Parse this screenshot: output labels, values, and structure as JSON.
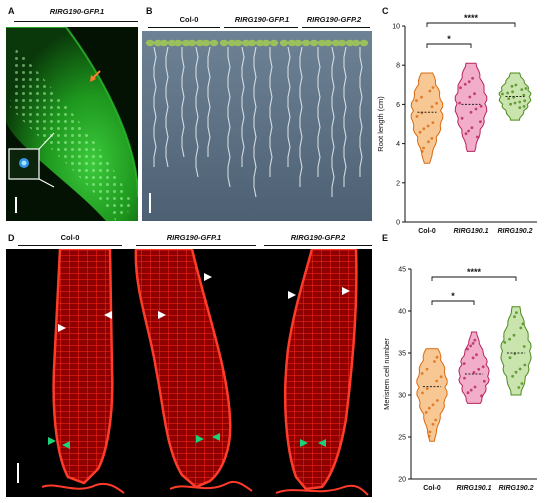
{
  "panels": {
    "A": {
      "letter": "A",
      "title": "RIRG190-GFP.1"
    },
    "B": {
      "letter": "B",
      "labels": [
        "Col-0",
        "RIRG190-GFP.1",
        "RIRG190-GFP.2"
      ]
    },
    "C": {
      "letter": "C"
    },
    "D": {
      "letter": "D",
      "labels": [
        "Col-0",
        "RIRG190-GFP.1",
        "RIRG190-GFP.2"
      ]
    },
    "E": {
      "letter": "E"
    }
  },
  "colors": {
    "col0": "#f39a3d",
    "col0_dot": "#d96a12",
    "rirg1": "#e66a9c",
    "rirg1_dot": "#b8235e",
    "rirg2": "#9cd06a",
    "rirg2_dot": "#4e8a1e",
    "gfp_bg": "#0c2a0c",
    "confocal_bg": "#000000",
    "seedling_bg": "#5c7083"
  },
  "chart_data": [
    {
      "type": "violin",
      "panel": "C",
      "categories": [
        "Col-0",
        "RIRG190.1",
        "RIRG190.2"
      ],
      "ylabel": "Root length (cm)",
      "ylim": [
        0,
        10
      ],
      "yticks": [
        0,
        2,
        4,
        6,
        8,
        10
      ],
      "medians": [
        5.6,
        6.0,
        6.4
      ],
      "ranges": [
        [
          3.0,
          7.6
        ],
        [
          3.6,
          8.1
        ],
        [
          5.2,
          7.6
        ]
      ],
      "significance": [
        {
          "from": "Col-0",
          "to": "RIRG190.1",
          "label": "*"
        },
        {
          "from": "Col-0",
          "to": "RIRG190.2",
          "label": "****"
        }
      ]
    },
    {
      "type": "violin",
      "panel": "E",
      "categories": [
        "Col-0",
        "RIRG190.1",
        "RIRG190.2"
      ],
      "ylabel": "Meristem cell number",
      "ylim": [
        20,
        45
      ],
      "yticks": [
        20,
        25,
        30,
        35,
        40,
        45
      ],
      "medians": [
        31.0,
        32.5,
        35.0
      ],
      "ranges": [
        [
          24.5,
          35.5
        ],
        [
          29.0,
          37.5
        ],
        [
          30.0,
          40.5
        ]
      ],
      "significance": [
        {
          "from": "Col-0",
          "to": "RIRG190.1",
          "label": "*"
        },
        {
          "from": "Col-0",
          "to": "RIRG190.2",
          "label": "****"
        }
      ]
    }
  ]
}
